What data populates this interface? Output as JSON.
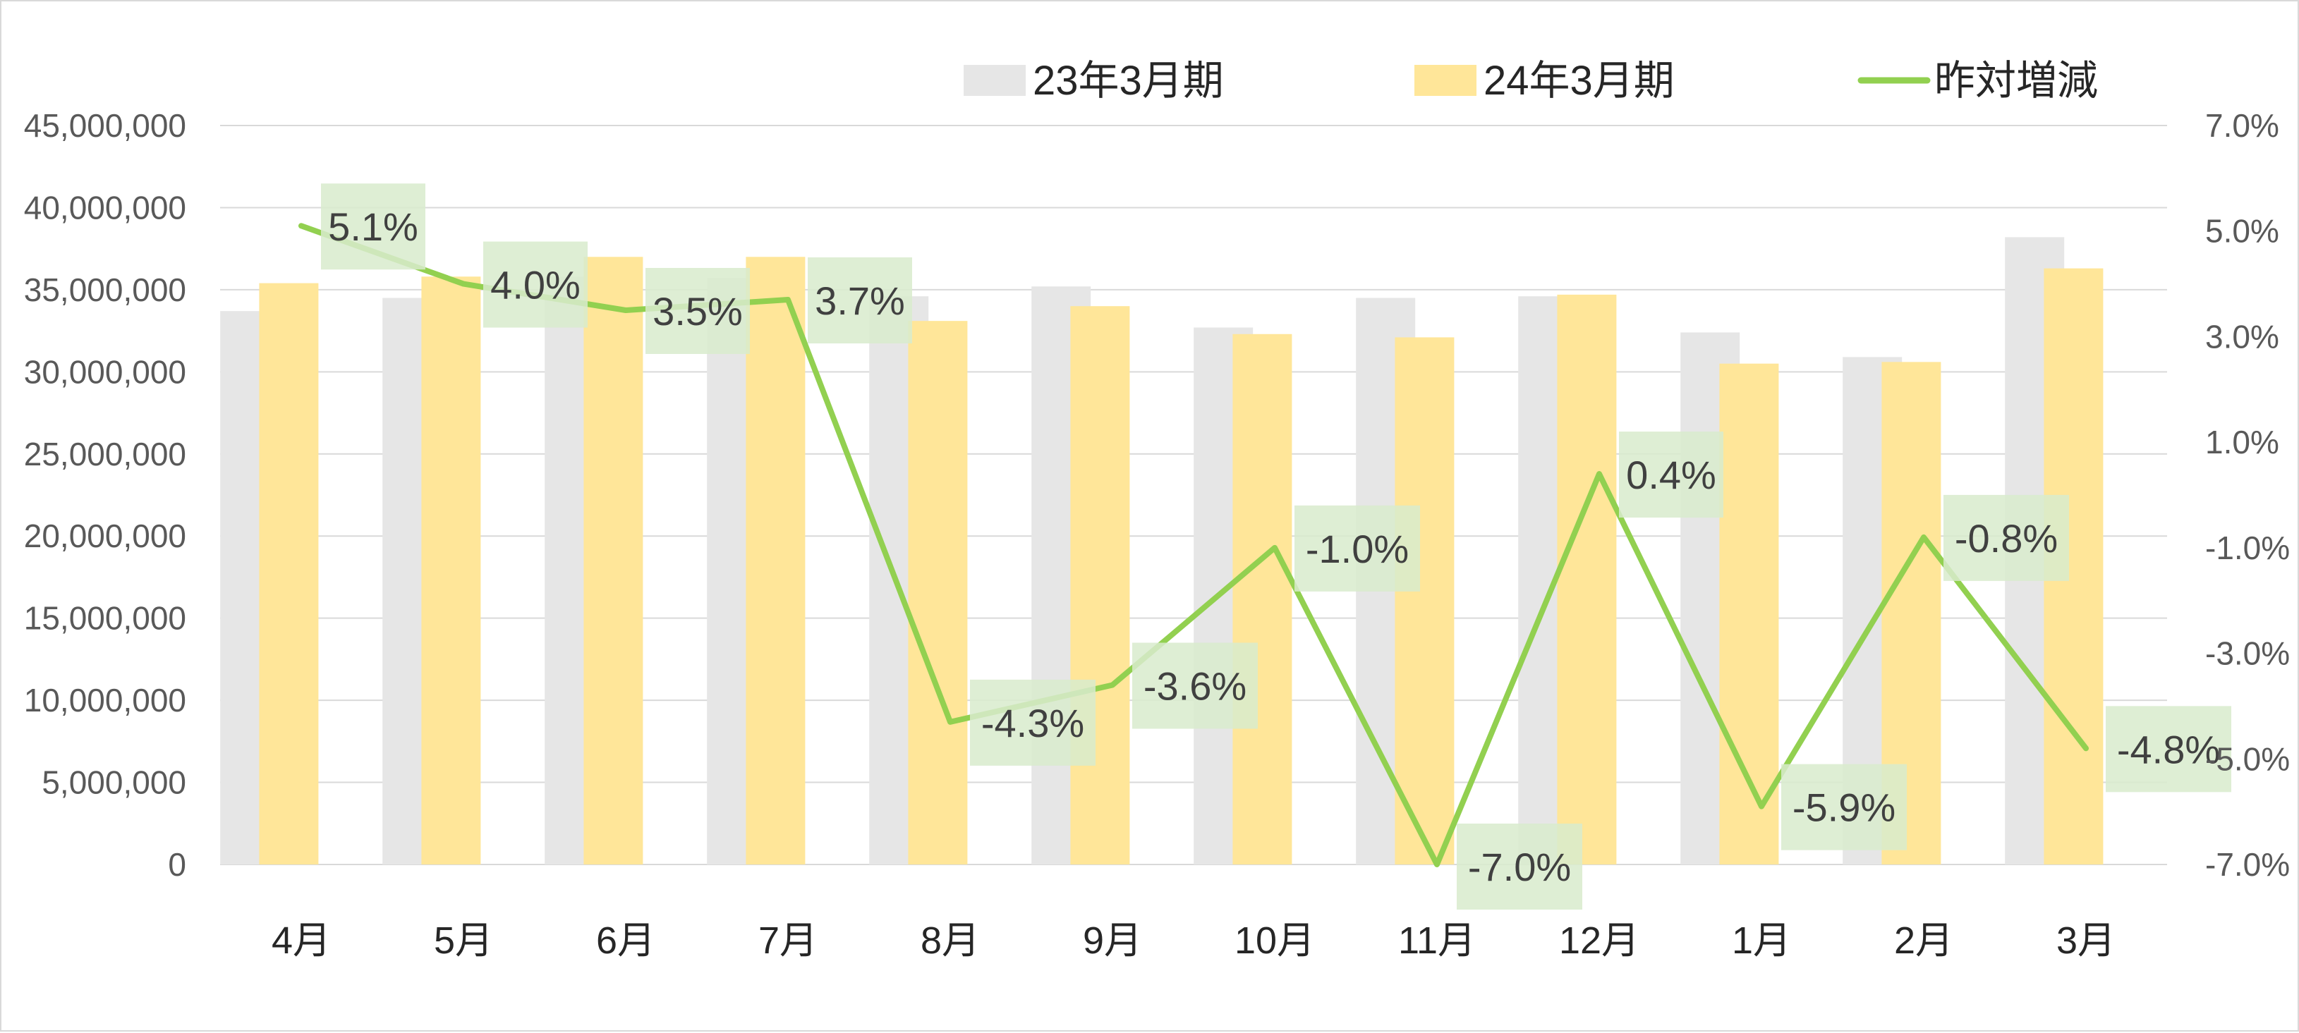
{
  "chart_data": {
    "type": "bar",
    "combo_with": "line",
    "categories": [
      "4月",
      "5月",
      "6月",
      "7月",
      "8月",
      "9月",
      "10月",
      "11月",
      "12月",
      "1月",
      "2月",
      "3月"
    ],
    "series": [
      {
        "name": "23年3月期",
        "kind": "bar",
        "axis": "left",
        "color": "#e6e6e6",
        "values": [
          33700000,
          34500000,
          35800000,
          35700000,
          34600000,
          35200000,
          32700000,
          34500000,
          34600000,
          32400000,
          30900000,
          38200000
        ]
      },
      {
        "name": "24年3月期",
        "kind": "bar",
        "axis": "left",
        "color": "#ffe699",
        "values": [
          35400000,
          35800000,
          37000000,
          37000000,
          33100000,
          34000000,
          32300000,
          32100000,
          34700000,
          30500000,
          30600000,
          36300000
        ]
      },
      {
        "name": "昨対増減",
        "kind": "line",
        "axis": "right",
        "color": "#92d050",
        "values": [
          5.1,
          4.0,
          3.5,
          3.7,
          -4.3,
          -3.6,
          -1.0,
          -7.0,
          0.4,
          -5.9,
          -0.8,
          -4.8
        ],
        "labels": [
          "5.1%",
          "4.0%",
          "3.5%",
          "3.7%",
          "-4.3%",
          "-3.6%",
          "-1.0%",
          "-7.0%",
          "0.4%",
          "-5.9%",
          "-0.8%",
          "-4.8%"
        ]
      }
    ],
    "y_left": {
      "ylim": [
        0,
        45000000
      ],
      "ticks": [
        0,
        5000000,
        10000000,
        15000000,
        20000000,
        25000000,
        30000000,
        35000000,
        40000000,
        45000000
      ],
      "tick_labels": [
        "0",
        "5,000,000",
        "10,000,000",
        "15,000,000",
        "20,000,000",
        "25,000,000",
        "30,000,000",
        "35,000,000",
        "40,000,000",
        "45,000,000"
      ]
    },
    "y_right": {
      "ylim": [
        -7.0,
        7.0
      ],
      "ticks": [
        -7,
        -5,
        -3,
        -1,
        1,
        3,
        5,
        7
      ],
      "tick_labels": [
        "-7.0%",
        "-5.0%",
        "-3.0%",
        "-1.0%",
        "1.0%",
        "3.0%",
        "5.0%",
        "7.0%"
      ]
    },
    "title": "",
    "xlabel": "",
    "ylabel": "",
    "grid": true,
    "legend_position": "top-right",
    "label_box_color": "#d8ebcc",
    "gridline_color": "#d9d9d9"
  }
}
